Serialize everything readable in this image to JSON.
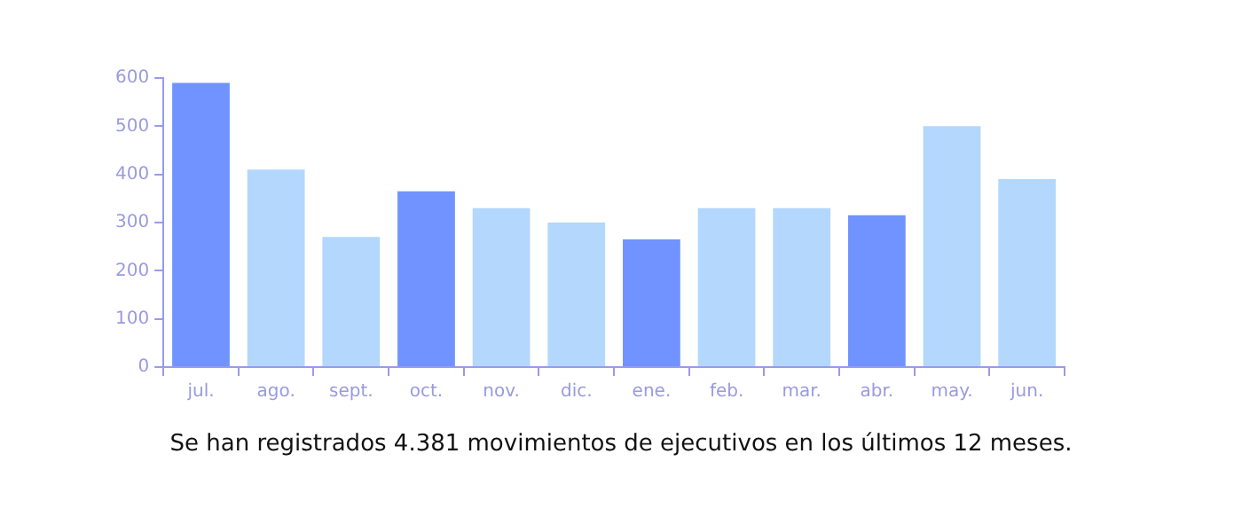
{
  "chart_data": {
    "type": "bar",
    "categories": [
      "jul.",
      "ago.",
      "sept.",
      "oct.",
      "nov.",
      "dic.",
      "ene.",
      "feb.",
      "mar.",
      "abr.",
      "may.",
      "jun."
    ],
    "values": [
      590,
      410,
      270,
      365,
      330,
      300,
      265,
      330,
      330,
      315,
      500,
      390
    ],
    "colors": [
      "#7093ff",
      "#b3d7fd",
      "#b3d7fd",
      "#7093ff",
      "#b3d7fd",
      "#b3d7fd",
      "#7093ff",
      "#b3d7fd",
      "#b3d7fd",
      "#7093ff",
      "#b3d7fd",
      "#b3d7fd"
    ],
    "ylim": [
      0,
      600
    ],
    "yticks": [
      0,
      100,
      200,
      300,
      400,
      500,
      600
    ],
    "grid": false,
    "annotations": [
      "Se han registrados 4.381 movimientos de ejecutivos en los últimos 12 meses."
    ]
  }
}
